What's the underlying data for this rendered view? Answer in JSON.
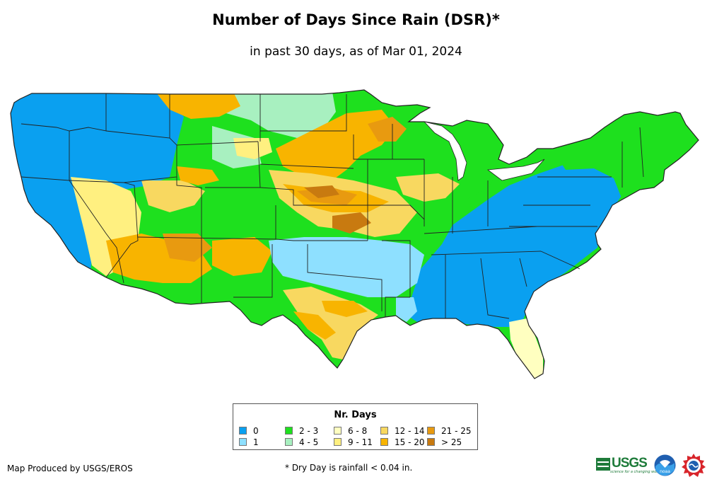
{
  "header": {
    "title": "Number of Days Since Rain (DSR)*",
    "subtitle": "in past 30 days, as of Mar 01, 2024"
  },
  "legend": {
    "title": "Nr. Days",
    "items": [
      {
        "label": "0",
        "color": "#0aa0f0"
      },
      {
        "label": "1",
        "color": "#8ee0ff"
      },
      {
        "label": "2 - 3",
        "color": "#1ee01e"
      },
      {
        "label": "4 - 5",
        "color": "#a8f0c0"
      },
      {
        "label": "6 - 8",
        "color": "#ffffc0"
      },
      {
        "label": "9 - 11",
        "color": "#fff080"
      },
      {
        "label": "12 - 14",
        "color": "#f8d860"
      },
      {
        "label": "15 - 20",
        "color": "#f8b400"
      },
      {
        "label": "21 - 25",
        "color": "#e89a10"
      },
      {
        "label": "> 25",
        "color": "#c87a10"
      }
    ]
  },
  "footer": {
    "credit": "Map Produced by USGS/EROS",
    "note": "* Dry Day is rainfall < 0.04 in.",
    "logos": {
      "usgs_text": "USGS",
      "usgs_tagline": "science for a changing world",
      "noaa_text": "noaa",
      "nws_icon": "nws-seal-icon"
    }
  },
  "map": {
    "colors": {
      "state_border": "#222222",
      "zero_days": "#0aa0f0",
      "one_day": "#8ee0ff",
      "two_three": "#1ee01e",
      "four_five": "#a8f0c0",
      "six_eight": "#ffffc0",
      "nine_eleven": "#fff080",
      "twelve_fourteen": "#f8d860",
      "fifteen_twenty": "#f8b400",
      "twentyone_twentyfive": "#e89a10",
      "over_twentyfive": "#c87a10"
    }
  }
}
